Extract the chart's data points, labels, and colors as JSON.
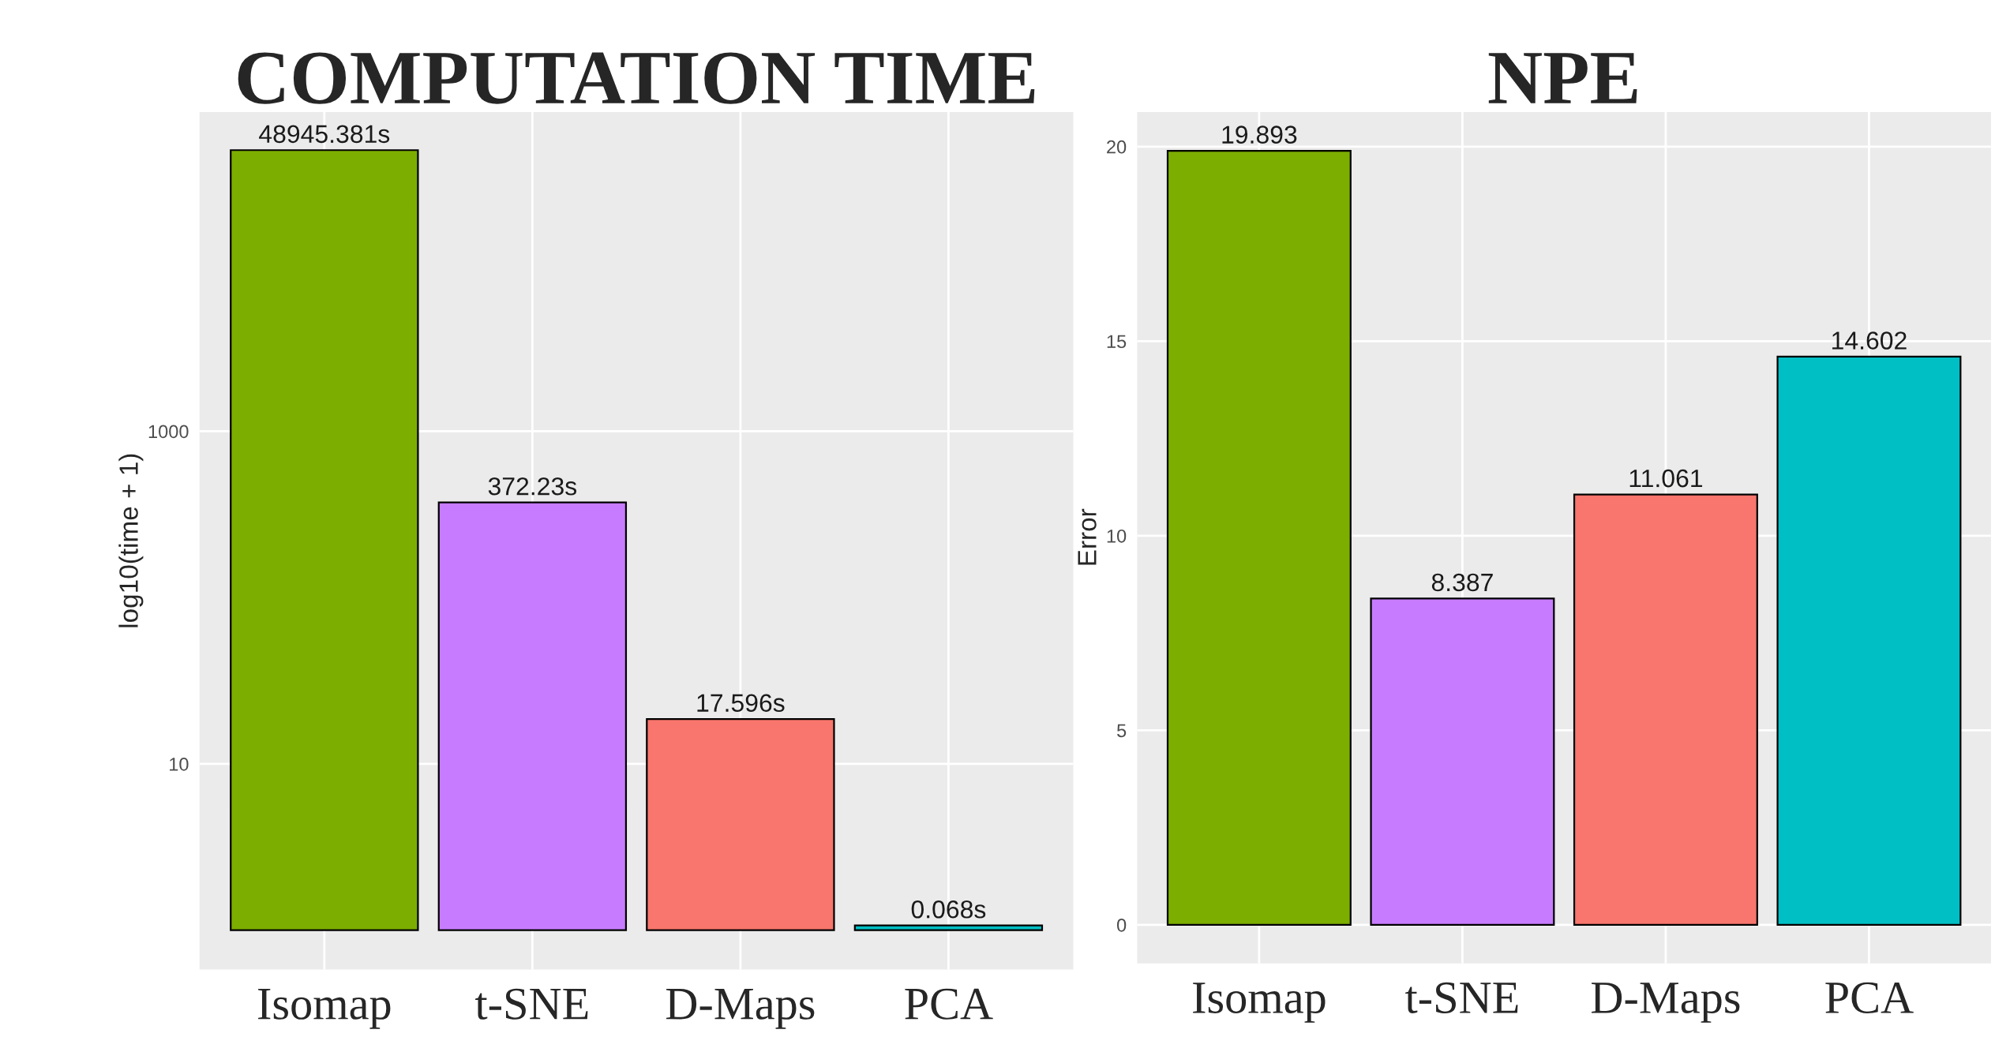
{
  "chart_data": [
    {
      "type": "bar",
      "title": "COMPUTATION TIME",
      "ylabel": "log10(time + 1)",
      "categories": [
        "Isomap",
        "t-SNE",
        "D-Maps",
        "PCA"
      ],
      "values": [
        48945.381,
        372.23,
        17.596,
        0.068
      ],
      "base": [
        1,
        1,
        1,
        1
      ],
      "value_labels": [
        "48945.381s",
        "372.23s",
        "17.596s",
        "0.068s"
      ],
      "colors": [
        "#7cae00",
        "#c77cff",
        "#f8766d",
        "#00bfc4"
      ],
      "log": "y",
      "ylim": [
        0.58,
        83000
      ],
      "yticks": [
        10,
        1000
      ],
      "grid": true
    },
    {
      "type": "bar",
      "title": "NPE",
      "ylabel": "Error",
      "categories": [
        "Isomap",
        "t-SNE",
        "D-Maps",
        "PCA"
      ],
      "values": [
        19.893,
        8.387,
        11.061,
        14.602
      ],
      "data_labels": true,
      "colors": [
        "#7cae00",
        "#c77cff",
        "#f8766d",
        "#00bfc4"
      ],
      "ylim": [
        -0.99,
        20.89
      ],
      "yticks": [
        0,
        5,
        10,
        15,
        20
      ],
      "grid": true
    }
  ]
}
